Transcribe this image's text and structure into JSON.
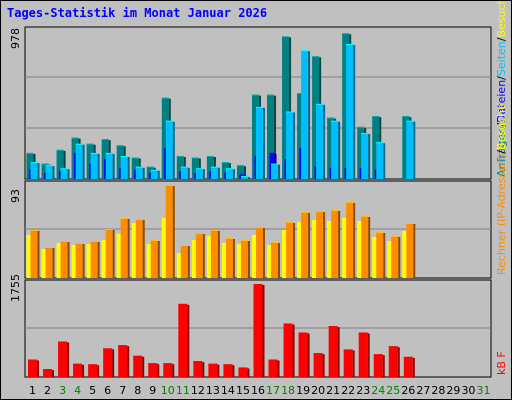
{
  "title": "Tages-Statistik im Monat Januar 2026",
  "side_labels": {
    "top": [
      {
        "text": "Anfragen",
        "color": "#008080"
      },
      {
        "text": "/",
        "color": "#000000"
      },
      {
        "text": "Dateien",
        "color": "#0000ff"
      },
      {
        "text": "/",
        "color": "#000000"
      },
      {
        "text": "Seiten",
        "color": "#00bfff"
      },
      {
        "text": "/",
        "color": "#000000"
      },
      {
        "text": "Besuche",
        "color": "#ffff00"
      }
    ],
    "middle": [
      {
        "text": "Rechner (IP-Adressen)",
        "color": "#ff8c00"
      },
      {
        "text": "/",
        "color": "#000000"
      },
      {
        "text": "Besuche",
        "color": "#ffff00"
      }
    ],
    "bottom": [
      {
        "text": "kB F",
        "color": "#ff0000"
      }
    ]
  },
  "chart_data": [
    {
      "type": "bar",
      "panel": "top",
      "ymax_label": "978",
      "ylim": [
        0,
        978
      ],
      "categories": [
        "1",
        "2",
        "3",
        "4",
        "5",
        "6",
        "7",
        "8",
        "9",
        "10",
        "11",
        "12",
        "13",
        "14",
        "15",
        "16",
        "17",
        "18",
        "19",
        "20",
        "21",
        "22",
        "23",
        "24",
        "25",
        "26",
        "27",
        "28",
        "29",
        "30",
        "31"
      ],
      "weekend_days": [
        "3",
        "4",
        "10",
        "11",
        "17",
        "18",
        "24",
        "25",
        "31"
      ],
      "series": [
        {
          "name": "Anfragen",
          "color": "#008080",
          "values": [
            170,
            100,
            190,
            270,
            230,
            260,
            220,
            140,
            80,
            530,
            150,
            140,
            150,
            110,
            90,
            550,
            550,
            930,
            560,
            800,
            400,
            950,
            340,
            410,
            0,
            0,
            0,
            0,
            0,
            0,
            0
          ]
        },
        {
          "name": "Dateien",
          "color": "#0000ff",
          "values": [
            60,
            40,
            50,
            170,
            100,
            130,
            70,
            60,
            40,
            200,
            50,
            40,
            50,
            40,
            30,
            150,
            170,
            130,
            200,
            80,
            70,
            70,
            70,
            60,
            0,
            0,
            0,
            0,
            0,
            0,
            0
          ]
        },
        {
          "name": "Seiten",
          "color": "#00bfff",
          "values": [
            110,
            90,
            70,
            230,
            170,
            170,
            150,
            80,
            60,
            380,
            80,
            70,
            80,
            70,
            20,
            470,
            100,
            440,
            840,
            490,
            380,
            880,
            300,
            240,
            0,
            0,
            0,
            0,
            0,
            0,
            0
          ]
        },
        {
          "name": "Besuche",
          "color": "#ffff00",
          "values": [
            0,
            0,
            0,
            0,
            0,
            0,
            0,
            0,
            0,
            0,
            0,
            0,
            0,
            0,
            0,
            0,
            0,
            0,
            0,
            0,
            0,
            0,
            0,
            0,
            0,
            0,
            0,
            0,
            0,
            0,
            0
          ]
        }
      ],
      "extra_values_day26": {
        "Anfragen": 410,
        "Seiten": 380
      }
    },
    {
      "type": "bar",
      "panel": "middle",
      "ymax_label": "93",
      "ylim": [
        0,
        93
      ],
      "categories": [
        "1",
        "2",
        "3",
        "4",
        "5",
        "6",
        "7",
        "8",
        "9",
        "10",
        "11",
        "12",
        "13",
        "14",
        "15",
        "16",
        "17",
        "18",
        "19",
        "20",
        "21",
        "22",
        "23",
        "24",
        "25",
        "26",
        "27",
        "28",
        "29",
        "30",
        "31"
      ],
      "series": [
        {
          "name": "Besuche",
          "color": "#ffff00",
          "values": [
            43,
            29,
            35,
            33,
            34,
            38,
            44,
            55,
            34,
            60,
            25,
            38,
            42,
            35,
            34,
            43,
            33,
            48,
            56,
            58,
            57,
            60,
            57,
            41,
            37,
            47,
            0,
            0,
            0,
            0,
            0
          ]
        },
        {
          "name": "Rechner",
          "color": "#ff8c00",
          "values": [
            48,
            31,
            37,
            35,
            37,
            49,
            60,
            59,
            38,
            93,
            33,
            45,
            48,
            40,
            38,
            51,
            36,
            56,
            66,
            67,
            68,
            76,
            62,
            46,
            42,
            55,
            0,
            0,
            0,
            0,
            0
          ]
        }
      ]
    },
    {
      "type": "bar",
      "panel": "bottom",
      "ymax_label": "1755",
      "ylim": [
        0,
        1755
      ],
      "categories": [
        "1",
        "2",
        "3",
        "4",
        "5",
        "6",
        "7",
        "8",
        "9",
        "10",
        "11",
        "12",
        "13",
        "14",
        "15",
        "16",
        "17",
        "18",
        "19",
        "20",
        "21",
        "22",
        "23",
        "24",
        "25",
        "26",
        "27",
        "28",
        "29",
        "30",
        "31"
      ],
      "series": [
        {
          "name": "kB F",
          "color": "#ff0000",
          "values": [
            330,
            150,
            670,
            250,
            240,
            540,
            600,
            400,
            260,
            260,
            1380,
            300,
            250,
            240,
            180,
            1755,
            330,
            1010,
            840,
            450,
            960,
            520,
            840,
            430,
            580,
            380,
            0,
            0,
            0,
            0,
            0
          ]
        }
      ]
    }
  ]
}
